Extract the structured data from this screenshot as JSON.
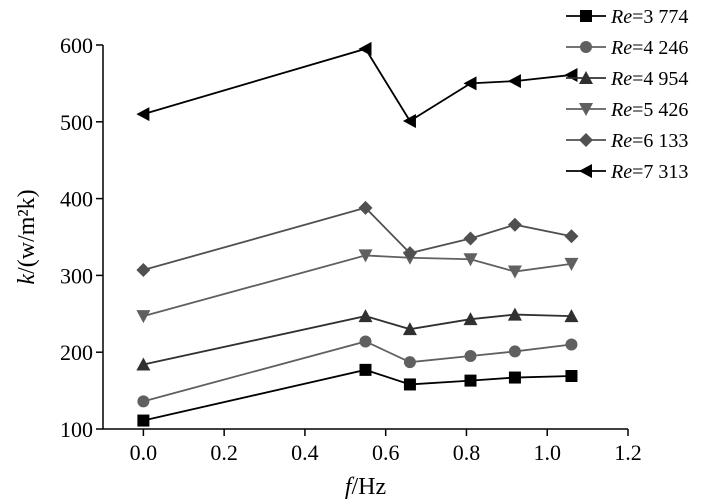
{
  "chart_data": {
    "type": "line",
    "title": "",
    "xlabel": {
      "italic": "f",
      "rest": "/Hz"
    },
    "ylabel": {
      "italic": "k",
      "rest": "/(w/m²k)"
    },
    "xlim": [
      -0.1,
      1.2
    ],
    "ylim": [
      100,
      600
    ],
    "xticks": [
      0.0,
      0.2,
      0.4,
      0.6,
      0.8,
      1.0,
      1.2
    ],
    "xtick_labels": [
      "0.0",
      "0.2",
      "0.4",
      "0.6",
      "0.8",
      "1.0",
      "1.2"
    ],
    "yticks": [
      100,
      200,
      300,
      400,
      500,
      600
    ],
    "ytick_labels": [
      "100",
      "200",
      "300",
      "400",
      "500",
      "600"
    ],
    "grid": false,
    "legend_position": "top-right",
    "x": [
      0.0,
      0.55,
      0.66,
      0.81,
      0.92,
      1.06
    ],
    "series": [
      {
        "name_italic": "Re",
        "name_rest": "=3 774",
        "marker": "square",
        "color": "#000000",
        "values": [
          111,
          177,
          158,
          163,
          167,
          169
        ]
      },
      {
        "name_italic": "Re",
        "name_rest": "=4 246",
        "marker": "circle",
        "color": "#606060",
        "values": [
          136,
          214,
          187,
          195,
          201,
          210
        ]
      },
      {
        "name_italic": "Re",
        "name_rest": "=4 954",
        "marker": "triangle-up",
        "color": "#303030",
        "values": [
          184,
          247,
          230,
          243,
          249,
          247
        ]
      },
      {
        "name_italic": "Re",
        "name_rest": "=5 426",
        "marker": "triangle-down",
        "color": "#606060",
        "values": [
          247,
          326,
          323,
          321,
          305,
          315
        ]
      },
      {
        "name_italic": "Re",
        "name_rest": "=6 133",
        "marker": "diamond",
        "color": "#505050",
        "values": [
          307,
          388,
          329,
          348,
          366,
          351
        ]
      },
      {
        "name_italic": "Re",
        "name_rest": "=7 313",
        "marker": "triangle-left",
        "color": "#000000",
        "values": [
          510,
          595,
          501,
          550,
          553,
          561
        ]
      }
    ]
  }
}
